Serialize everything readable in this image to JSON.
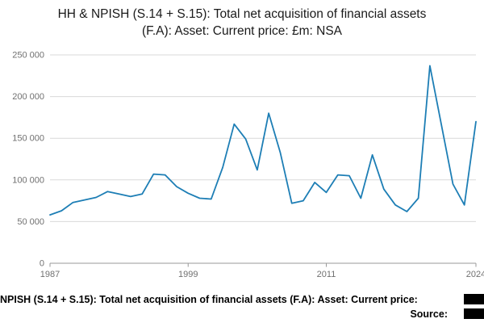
{
  "chart_data": {
    "type": "line",
    "title": "HH & NPISH (S.14 + S.15): Total net acquisition of financial assets (F.A): Asset: Current price: £m: NSA",
    "xlabel": "",
    "ylabel": "",
    "ylim": [
      0,
      250000
    ],
    "grid": true,
    "legend": "none",
    "years": [
      1987,
      1988,
      1989,
      1990,
      1991,
      1992,
      1993,
      1994,
      1995,
      1996,
      1997,
      1998,
      1999,
      2000,
      2001,
      2002,
      2003,
      2004,
      2005,
      2006,
      2007,
      2008,
      2009,
      2010,
      2011,
      2012,
      2013,
      2014,
      2015,
      2016,
      2017,
      2018,
      2019,
      2020,
      2021,
      2022,
      2023,
      2024
    ],
    "values": [
      58000,
      63000,
      73000,
      76000,
      79000,
      86000,
      83000,
      80000,
      83000,
      107000,
      106000,
      92000,
      84000,
      78000,
      77000,
      115000,
      167000,
      149000,
      112000,
      180000,
      133000,
      72000,
      75000,
      97000,
      85000,
      106000,
      105000,
      78000,
      130000,
      89000,
      70000,
      62000,
      78000,
      237000,
      166000,
      95000,
      70000,
      170000
    ],
    "yticks": [
      0,
      50000,
      100000,
      150000,
      200000,
      250000
    ],
    "ytick_labels": [
      "0",
      "50 000",
      "100 000",
      "150 000",
      "200 000",
      "250 000"
    ],
    "xticks": [
      1987,
      1999,
      2011,
      2024
    ],
    "xtick_labels": [
      "1987",
      "1999",
      "2011",
      "2024"
    ],
    "colors": {
      "line": "#1d7eb5",
      "grid": "#d9d9d9",
      "axis": "#999999",
      "tick_text": "#707070"
    }
  },
  "footer": {
    "series_text": "NPISH (S.14 + S.15): Total net acquisition of financial assets (F.A): Asset: Current price:",
    "source_label": "Source:"
  }
}
